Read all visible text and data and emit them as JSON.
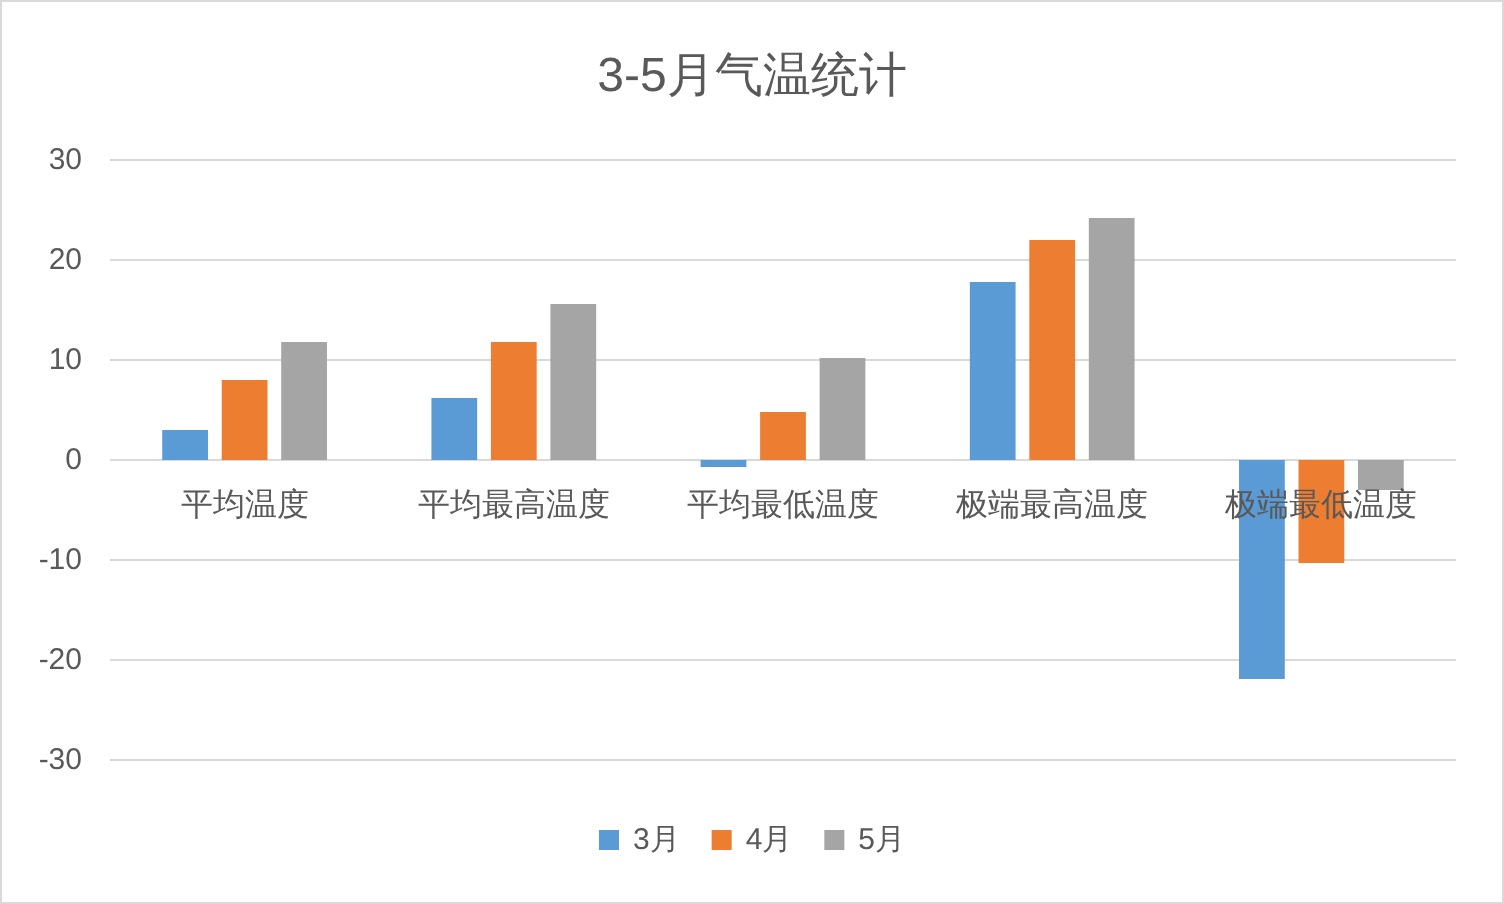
{
  "chart_data": {
    "type": "bar",
    "title": "3-5月气温统计",
    "categories": [
      "平均温度",
      "平均最高温度",
      "平均最低温度",
      "极端最高温度",
      "极端最低温度"
    ],
    "series": [
      {
        "name": "3月",
        "color": "#5b9bd5",
        "values": [
          3.0,
          6.2,
          -0.7,
          17.8,
          -21.9
        ]
      },
      {
        "name": "4月",
        "color": "#ed7d31",
        "values": [
          8.0,
          11.8,
          4.8,
          22.0,
          -10.3
        ]
      },
      {
        "name": "5月",
        "color": "#a5a5a5",
        "values": [
          11.8,
          15.6,
          10.2,
          24.2,
          -3.0
        ]
      }
    ],
    "ylim": [
      -30,
      30
    ],
    "yticks": [
      -30,
      -20,
      -10,
      0,
      10,
      20,
      30
    ],
    "grid": "y",
    "legend": "bottom"
  }
}
